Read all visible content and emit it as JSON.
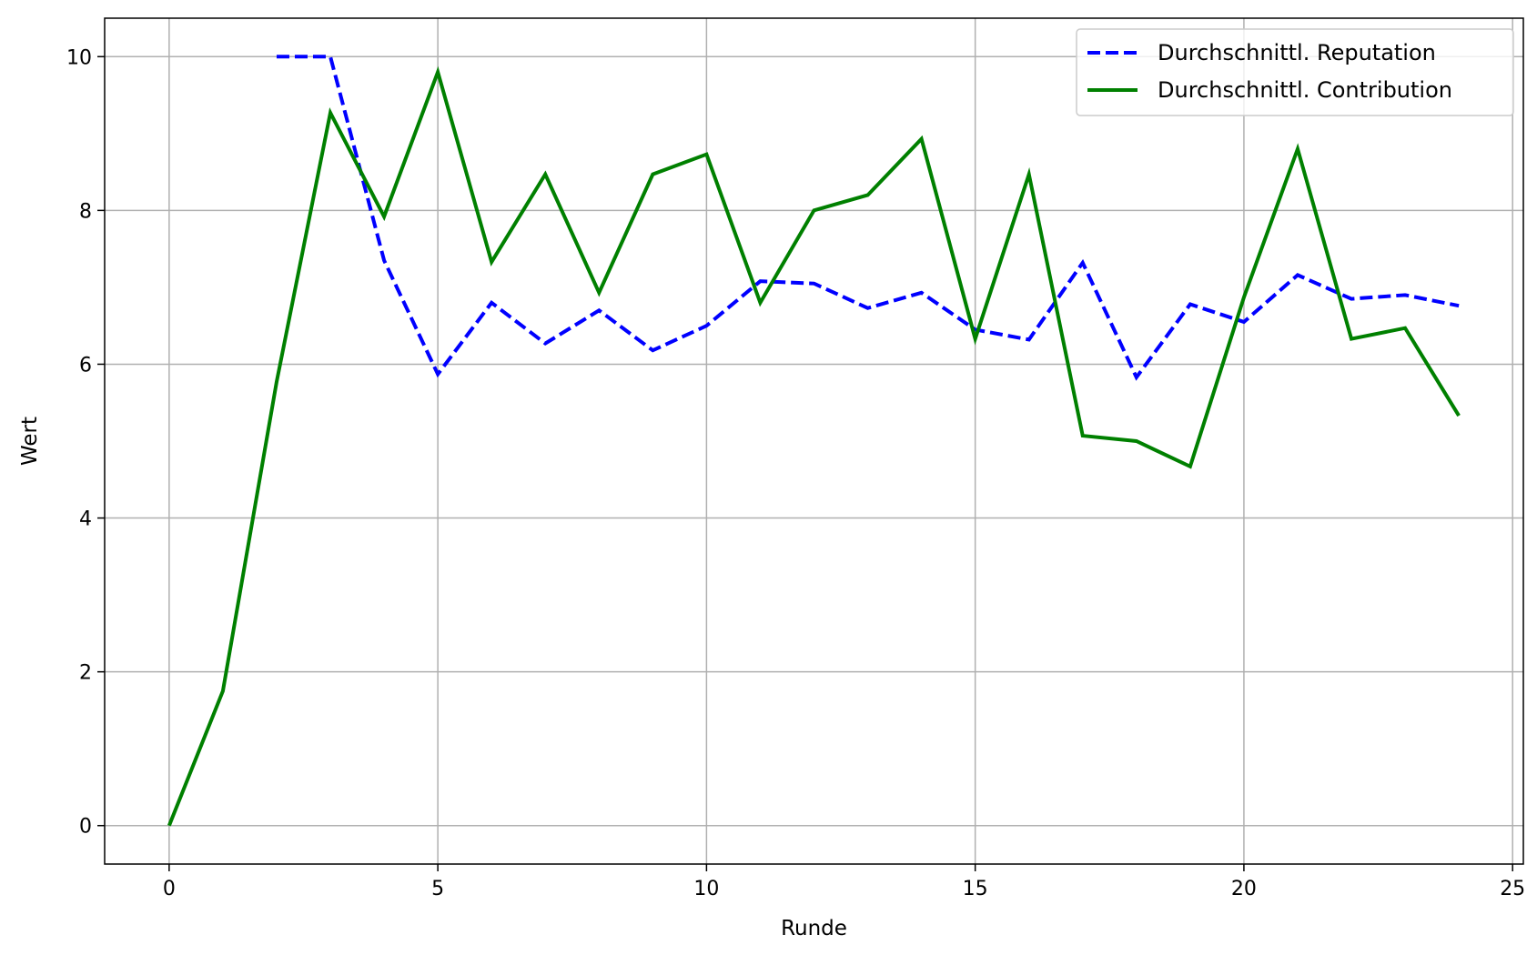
{
  "chart_data": {
    "type": "line",
    "title": "",
    "xlabel": "Runde",
    "ylabel": "Wert",
    "xlim": [
      -1.2,
      25.2
    ],
    "ylim": [
      -0.5,
      10.5
    ],
    "xticks": [
      0,
      5,
      10,
      15,
      20,
      25
    ],
    "yticks": [
      0,
      2,
      4,
      6,
      8,
      10
    ],
    "grid": true,
    "legend_position": "top-right",
    "series": [
      {
        "name": "Durchschnittl. Reputation",
        "color": "#0000ff",
        "style": "dashed",
        "x": [
          2,
          3,
          4,
          5,
          6,
          7,
          8,
          9,
          10,
          11,
          12,
          13,
          14,
          15,
          16,
          17,
          18,
          19,
          20,
          21,
          22,
          23,
          24
        ],
        "values": [
          10.0,
          10.0,
          7.35,
          5.87,
          6.8,
          6.27,
          6.7,
          6.18,
          6.5,
          7.08,
          7.05,
          6.73,
          6.93,
          6.45,
          6.32,
          7.32,
          5.83,
          6.78,
          6.55,
          7.16,
          6.85,
          6.9,
          6.76
        ]
      },
      {
        "name": "Durchschnittl. Contribution",
        "color": "#008000",
        "style": "solid",
        "x": [
          0,
          1,
          2,
          3,
          4,
          5,
          6,
          7,
          8,
          9,
          10,
          11,
          12,
          13,
          14,
          15,
          16,
          17,
          18,
          19,
          20,
          21,
          22,
          23,
          24
        ],
        "values": [
          0.0,
          1.75,
          5.77,
          9.27,
          7.92,
          9.8,
          7.33,
          8.47,
          6.93,
          8.47,
          8.73,
          6.8,
          8.0,
          8.2,
          8.93,
          6.33,
          8.47,
          5.07,
          5.0,
          4.67,
          6.87,
          8.8,
          6.33,
          6.47,
          5.33
        ]
      }
    ]
  }
}
